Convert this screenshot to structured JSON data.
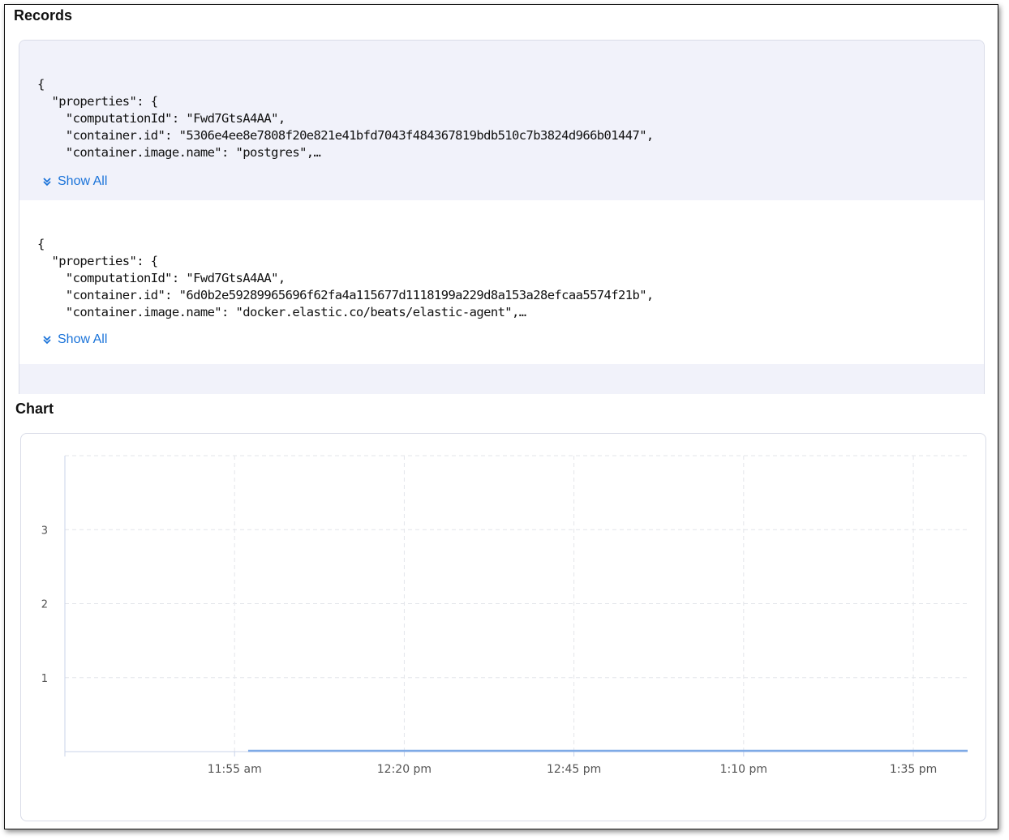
{
  "records": {
    "title": "Records",
    "items": [
      {
        "lines": [
          "{",
          "  \"properties\": {",
          "    \"computationId\": \"Fwd7GtsA4AA\",",
          "    \"container.id\": \"5306e4ee8e7808f20e821e41bfd7043f484367819bdb510c7b3824d966b01447\",",
          "    \"container.image.name\": \"postgres\",…"
        ],
        "show_all_label": "Show All"
      },
      {
        "lines": [
          "{",
          "  \"properties\": {",
          "    \"computationId\": \"Fwd7GtsA4AA\",",
          "    \"container.id\": \"6d0b2e59289965696f62fa4a115677d1118199a229d8a153a28efcaa5574f21b\",",
          "    \"container.image.name\": \"docker.elastic.co/beats/elastic-agent\",…"
        ],
        "show_all_label": "Show All"
      }
    ],
    "colors": {
      "link": "#1a73d9",
      "row_alt_bg": "#f1f2fa"
    }
  },
  "chart": {
    "title": "Chart",
    "chart_data": {
      "type": "line",
      "title": "",
      "xlabel": "",
      "ylabel": "",
      "x_ticks": [
        "11:55 am",
        "12:20 pm",
        "12:45 pm",
        "1:10 pm",
        "1:35 pm"
      ],
      "x_range": [
        "11:30 am",
        "1:43 pm"
      ],
      "y_ticks": [
        1,
        2,
        3
      ],
      "ylim": [
        0,
        4
      ],
      "grid": true,
      "series": [
        {
          "color": "#7eaae6",
          "points": [
            {
              "x": "11:57 am",
              "y": 0
            },
            {
              "x": "1:43 pm",
              "y": 0
            }
          ]
        }
      ]
    }
  }
}
